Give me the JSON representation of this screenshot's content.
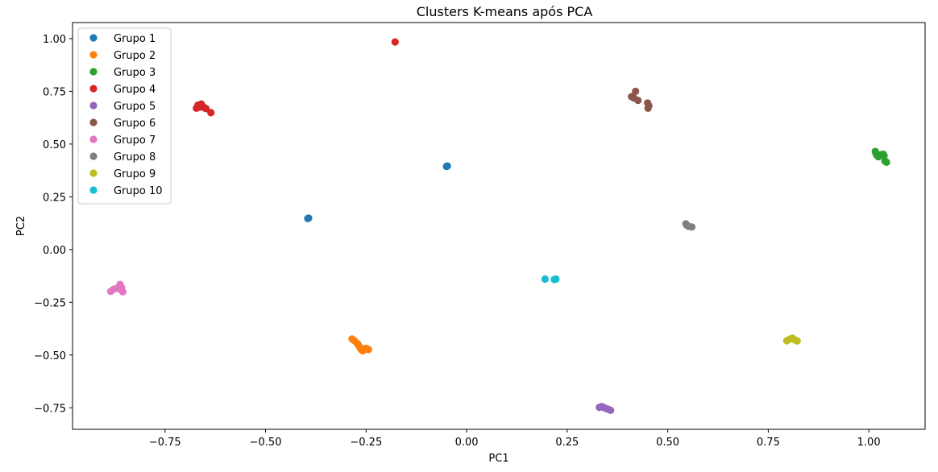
{
  "chart_data": {
    "type": "scatter",
    "title": "Clusters K-means após PCA",
    "xlabel": "PC1",
    "ylabel": "PC2",
    "xlim": [
      -0.98,
      1.14
    ],
    "ylim": [
      -0.852,
      1.076
    ],
    "grid": false,
    "legend_position": "top-left",
    "x_ticks": [
      {
        "value": -0.75,
        "label": "−0.75"
      },
      {
        "value": -0.5,
        "label": "−0.50"
      },
      {
        "value": -0.25,
        "label": "−0.25"
      },
      {
        "value": 0.0,
        "label": "0.00"
      },
      {
        "value": 0.25,
        "label": "0.25"
      },
      {
        "value": 0.5,
        "label": "0.50"
      },
      {
        "value": 0.75,
        "label": "0.75"
      },
      {
        "value": 1.0,
        "label": "1.00"
      }
    ],
    "y_ticks": [
      {
        "value": 1.0,
        "label": "1.00"
      },
      {
        "value": 0.75,
        "label": "0.75"
      },
      {
        "value": 0.5,
        "label": "0.50"
      },
      {
        "value": 0.25,
        "label": "0.25"
      },
      {
        "value": 0.0,
        "label": "0.00"
      },
      {
        "value": -0.25,
        "label": "−0.25"
      },
      {
        "value": -0.5,
        "label": "−0.50"
      },
      {
        "value": -0.75,
        "label": "−0.75"
      }
    ],
    "series": [
      {
        "name": "Grupo 1",
        "color": "#1f77b4",
        "points": [
          [
            -0.395,
            0.147
          ],
          [
            -0.393,
            0.149
          ],
          [
            -0.05,
            0.394
          ],
          [
            -0.048,
            0.396
          ]
        ]
      },
      {
        "name": "Grupo 2",
        "color": "#ff7f0e",
        "points": [
          [
            -0.285,
            -0.424
          ],
          [
            -0.279,
            -0.432
          ],
          [
            -0.272,
            -0.445
          ],
          [
            -0.268,
            -0.455
          ],
          [
            -0.265,
            -0.466
          ],
          [
            -0.262,
            -0.474
          ],
          [
            -0.258,
            -0.48
          ],
          [
            -0.255,
            -0.47
          ],
          [
            -0.25,
            -0.468
          ],
          [
            -0.244,
            -0.474
          ]
        ]
      },
      {
        "name": "Grupo 3",
        "color": "#2ca02c",
        "points": [
          [
            1.016,
            0.465
          ],
          [
            1.018,
            0.455
          ],
          [
            1.02,
            0.447
          ],
          [
            1.024,
            0.44
          ],
          [
            1.03,
            0.45
          ],
          [
            1.036,
            0.452
          ],
          [
            1.04,
            0.42
          ],
          [
            1.044,
            0.414
          ],
          [
            1.038,
            0.445
          ]
        ]
      },
      {
        "name": "Grupo 4",
        "color": "#d62728",
        "points": [
          [
            -0.672,
            0.67
          ],
          [
            -0.668,
            0.685
          ],
          [
            -0.664,
            0.675
          ],
          [
            -0.66,
            0.69
          ],
          [
            -0.657,
            0.68
          ],
          [
            -0.652,
            0.672
          ],
          [
            -0.648,
            0.668
          ],
          [
            -0.636,
            0.649
          ],
          [
            -0.178,
            0.984
          ]
        ]
      },
      {
        "name": "Grupo 5",
        "color": "#9467bd",
        "points": [
          [
            0.33,
            -0.748
          ],
          [
            0.336,
            -0.744
          ],
          [
            0.342,
            -0.75
          ],
          [
            0.348,
            -0.754
          ],
          [
            0.353,
            -0.758
          ],
          [
            0.358,
            -0.762
          ]
        ]
      },
      {
        "name": "Grupo 6",
        "color": "#8c564b",
        "points": [
          [
            0.41,
            0.725
          ],
          [
            0.416,
            0.718
          ],
          [
            0.42,
            0.75
          ],
          [
            0.426,
            0.707
          ],
          [
            0.45,
            0.695
          ],
          [
            0.453,
            0.682
          ],
          [
            0.451,
            0.67
          ]
        ]
      },
      {
        "name": "Grupo 7",
        "color": "#e377c2",
        "points": [
          [
            -0.885,
            -0.198
          ],
          [
            -0.878,
            -0.188
          ],
          [
            -0.87,
            -0.184
          ],
          [
            -0.862,
            -0.165
          ],
          [
            -0.858,
            -0.18
          ],
          [
            -0.855,
            -0.2
          ],
          [
            -0.86,
            -0.19
          ]
        ]
      },
      {
        "name": "Grupo 8",
        "color": "#7f7f7f",
        "points": [
          [
            0.545,
            0.122
          ],
          [
            0.548,
            0.115
          ],
          [
            0.552,
            0.11
          ],
          [
            0.56,
            0.107
          ]
        ]
      },
      {
        "name": "Grupo 9",
        "color": "#bcbd22",
        "points": [
          [
            0.796,
            -0.432
          ],
          [
            0.803,
            -0.425
          ],
          [
            0.81,
            -0.42
          ],
          [
            0.816,
            -0.428
          ],
          [
            0.822,
            -0.433
          ]
        ]
      },
      {
        "name": "Grupo 10",
        "color": "#17becf",
        "points": [
          [
            0.195,
            -0.14
          ],
          [
            0.218,
            -0.142
          ],
          [
            0.222,
            -0.14
          ]
        ]
      }
    ]
  }
}
